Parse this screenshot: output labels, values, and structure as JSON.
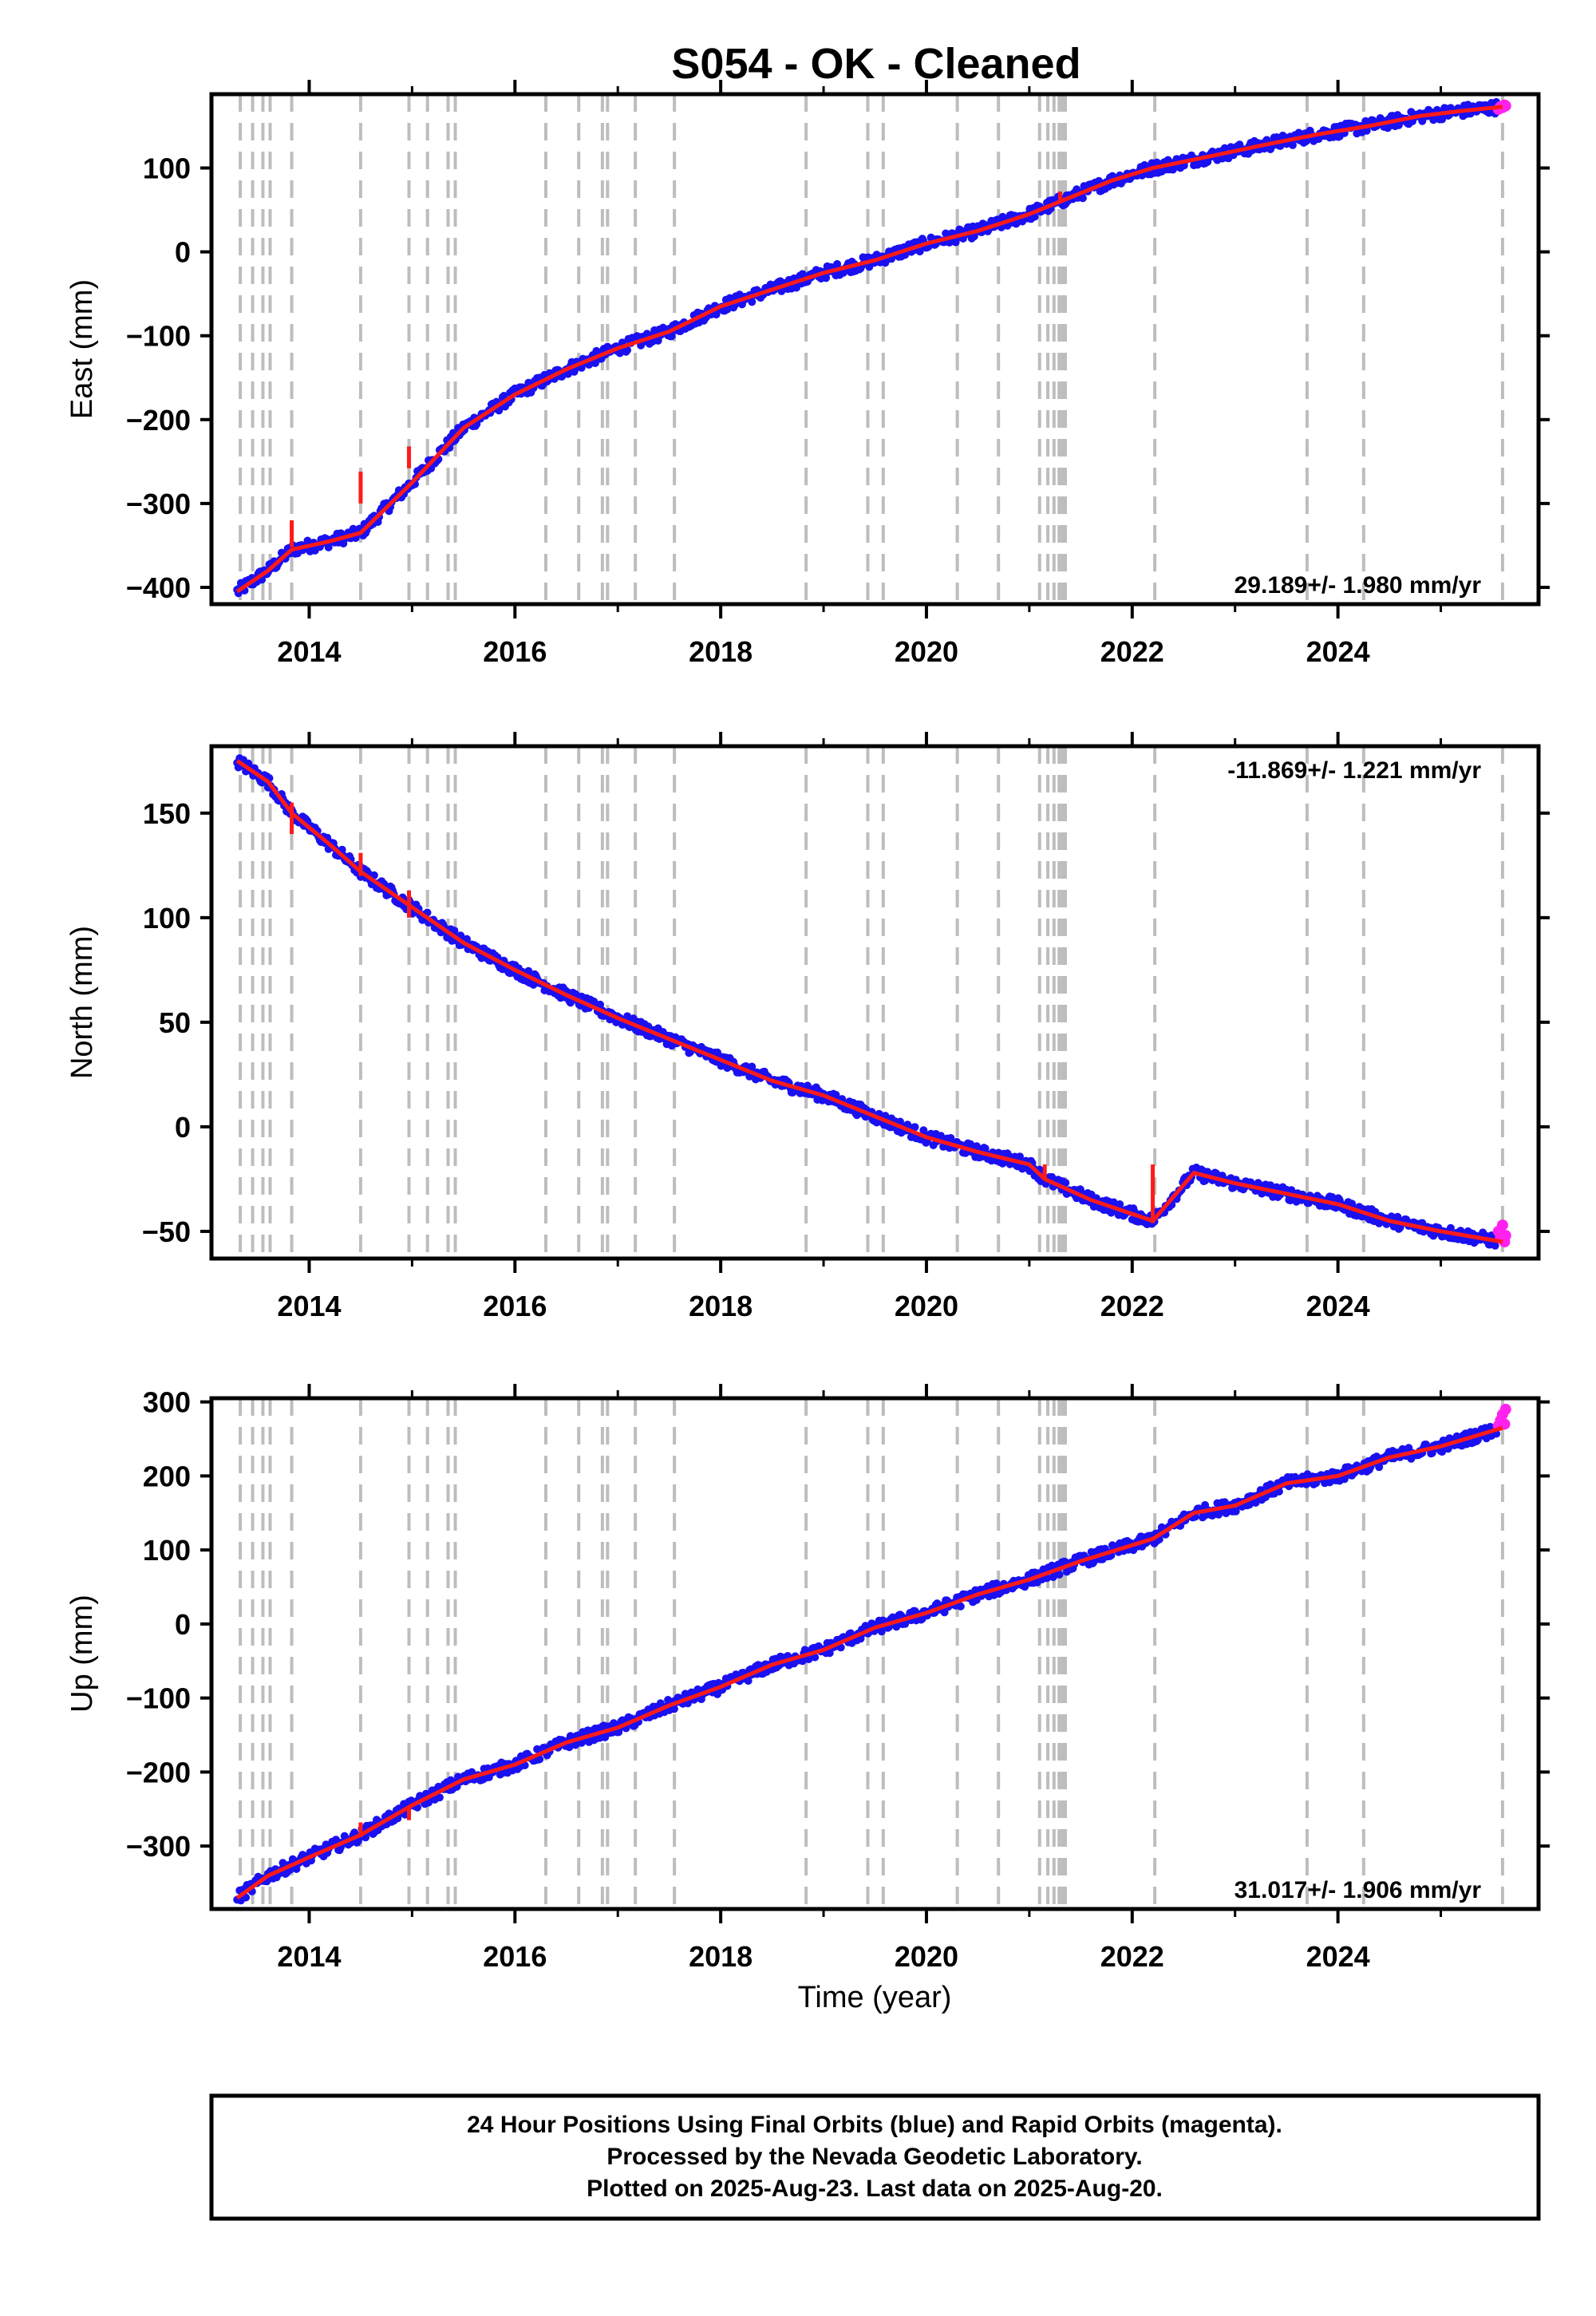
{
  "title": "S054  - OK - Cleaned",
  "xlabel": "Time (year)",
  "footer": {
    "line1": "24 Hour Positions Using Final Orbits (blue) and Rapid Orbits (magenta).",
    "line2": "Processed by the Nevada Geodetic Laboratory.",
    "line3": "Plotted on 2025-Aug-23. Last data on 2025-Aug-20."
  },
  "colors": {
    "final": "#1a10f0",
    "rapid": "#ff22ee",
    "model": "#ff1a1a",
    "steps": "#bdbdbd",
    "frame": "#000000"
  },
  "chart_data": [
    {
      "type": "scatter",
      "component": "east",
      "ylabel": "East (mm)",
      "rate": "29.189+/- 1.980 mm/yr",
      "xlim": [
        2013.05,
        2025.95
      ],
      "ylim": [
        -420,
        188
      ],
      "xticks": [
        2014,
        2016,
        2018,
        2020,
        2022,
        2024
      ],
      "yticks": [
        -400,
        -300,
        -200,
        -100,
        0,
        100
      ],
      "step_epochs": [
        2013.33,
        2013.45,
        2013.55,
        2013.62,
        2013.83,
        2014.5,
        2014.97,
        2015.15,
        2015.35,
        2015.42,
        2016.3,
        2016.62,
        2016.85,
        2016.9,
        2017.17,
        2017.55,
        2018.83,
        2019.43,
        2019.58,
        2020.3,
        2020.7,
        2021.1,
        2021.18,
        2021.24,
        2021.29,
        2021.32,
        2021.35,
        2022.22,
        2023.7,
        2024.25,
        2025.6
      ],
      "trend": {
        "x": [
          2013.3,
          2013.6,
          2013.83,
          2014.2,
          2014.5,
          2015.0,
          2015.5,
          2016.0,
          2016.5,
          2017.0,
          2017.5,
          2018.0,
          2018.5,
          2019.0,
          2019.5,
          2020.0,
          2020.5,
          2021.0,
          2021.3,
          2021.8,
          2022.2,
          2022.8,
          2023.3,
          2023.8,
          2024.3,
          2024.8,
          2025.2,
          2025.6
        ],
        "y": [
          -405,
          -380,
          -355,
          -345,
          -335,
          -275,
          -210,
          -170,
          -140,
          -115,
          -95,
          -65,
          -45,
          -25,
          -10,
          10,
          25,
          45,
          60,
          85,
          100,
          115,
          128,
          140,
          150,
          162,
          168,
          173
        ]
      },
      "model_steps": [
        {
          "x": 2013.83,
          "y_before": -352,
          "y_after": -320
        },
        {
          "x": 2014.5,
          "y_before": -300,
          "y_after": -262
        },
        {
          "x": 2014.97,
          "y_before": -258,
          "y_after": -232
        },
        {
          "x": 2021.3,
          "y_before": 58,
          "y_after": 72
        }
      ],
      "rapid": {
        "x": [
          2025.56,
          2025.58,
          2025.6,
          2025.62,
          2025.63
        ],
        "y": [
          170,
          173,
          172,
          175,
          174
        ]
      }
    },
    {
      "type": "scatter",
      "component": "north",
      "ylabel": "North (mm)",
      "rate": "-11.869+/- 1.221 mm/yr",
      "xlim": [
        2013.05,
        2025.95
      ],
      "ylim": [
        -63,
        182
      ],
      "xticks": [
        2014,
        2016,
        2018,
        2020,
        2022,
        2024
      ],
      "yticks": [
        -50,
        0,
        50,
        100,
        150
      ],
      "step_epochs": [
        2013.33,
        2013.45,
        2013.55,
        2013.62,
        2013.83,
        2014.5,
        2014.97,
        2015.15,
        2015.35,
        2015.42,
        2016.3,
        2016.62,
        2016.85,
        2016.9,
        2017.17,
        2017.55,
        2018.83,
        2019.43,
        2019.58,
        2020.3,
        2020.7,
        2021.1,
        2021.18,
        2021.24,
        2021.29,
        2021.32,
        2021.35,
        2022.22,
        2023.7,
        2024.25,
        2025.6
      ],
      "trend": {
        "x": [
          2013.3,
          2013.6,
          2013.83,
          2014.2,
          2014.5,
          2015.0,
          2015.5,
          2016.0,
          2016.5,
          2017.0,
          2017.5,
          2018.0,
          2018.5,
          2019.0,
          2019.5,
          2020.0,
          2020.5,
          2021.0,
          2021.15,
          2021.6,
          2022.2,
          2022.6,
          2023.0,
          2023.5,
          2024.0,
          2024.5,
          2025.0,
          2025.6
        ],
        "y": [
          175,
          165,
          150,
          135,
          122,
          105,
          88,
          75,
          63,
          52,
          42,
          32,
          22,
          15,
          5,
          -5,
          -12,
          -18,
          -25,
          -35,
          -45,
          -22,
          -27,
          -32,
          -37,
          -45,
          -50,
          -55
        ]
      },
      "model_steps": [
        {
          "x": 2013.83,
          "y_before": 155,
          "y_after": 140
        },
        {
          "x": 2014.5,
          "y_before": 131,
          "y_after": 120
        },
        {
          "x": 2014.97,
          "y_before": 113,
          "y_after": 100
        },
        {
          "x": 2021.15,
          "y_before": -18,
          "y_after": -25
        },
        {
          "x": 2022.2,
          "y_before": -46,
          "y_after": -18
        }
      ],
      "rapid": {
        "x": [
          2025.56,
          2025.58,
          2025.6,
          2025.62,
          2025.63
        ],
        "y": [
          -50,
          -53,
          -47,
          -55,
          -52
        ]
      }
    },
    {
      "type": "scatter",
      "component": "up",
      "ylabel": "Up (mm)",
      "rate": "31.017+/- 1.906 mm/yr",
      "xlim": [
        2013.05,
        2025.95
      ],
      "ylim": [
        -385,
        305
      ],
      "xticks": [
        2014,
        2016,
        2018,
        2020,
        2022,
        2024
      ],
      "yticks": [
        -300,
        -200,
        -100,
        0,
        100,
        200,
        300
      ],
      "step_epochs": [
        2013.33,
        2013.45,
        2013.55,
        2013.62,
        2013.83,
        2014.5,
        2014.97,
        2015.15,
        2015.35,
        2015.42,
        2016.3,
        2016.62,
        2016.85,
        2016.9,
        2017.17,
        2017.55,
        2018.83,
        2019.43,
        2019.58,
        2020.3,
        2020.7,
        2021.1,
        2021.18,
        2021.24,
        2021.29,
        2021.32,
        2021.35,
        2022.22,
        2023.7,
        2024.25,
        2025.6
      ],
      "trend": {
        "x": [
          2013.3,
          2013.6,
          2014.0,
          2014.5,
          2015.0,
          2015.5,
          2016.0,
          2016.5,
          2017.0,
          2017.5,
          2018.0,
          2018.5,
          2019.0,
          2019.5,
          2020.0,
          2020.5,
          2021.0,
          2021.5,
          2022.2,
          2022.6,
          2023.0,
          2023.5,
          2024.0,
          2024.5,
          2025.0,
          2025.6
        ],
        "y": [
          -370,
          -340,
          -315,
          -285,
          -245,
          -210,
          -190,
          -160,
          -140,
          -110,
          -85,
          -55,
          -35,
          -5,
          15,
          40,
          60,
          85,
          115,
          150,
          160,
          190,
          200,
          225,
          240,
          265
        ]
      },
      "model_steps": [
        {
          "x": 2014.5,
          "y_before": -288,
          "y_after": -268
        },
        {
          "x": 2014.97,
          "y_before": -265,
          "y_after": -248
        }
      ],
      "rapid": {
        "x": [
          2025.56,
          2025.58,
          2025.6,
          2025.62,
          2025.63
        ],
        "y": [
          268,
          275,
          283,
          270,
          290
        ]
      }
    }
  ]
}
